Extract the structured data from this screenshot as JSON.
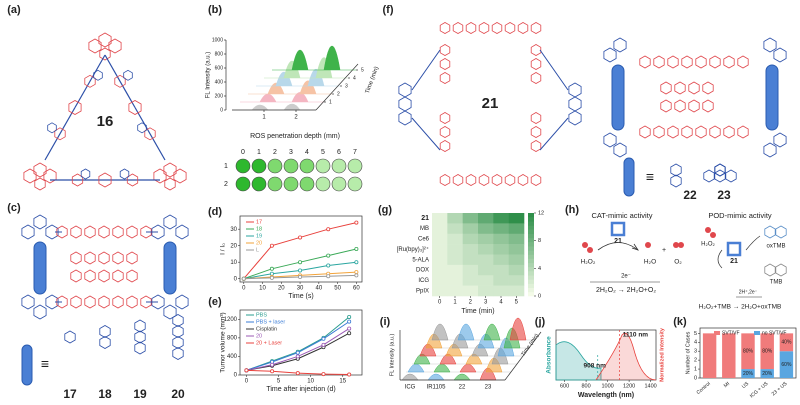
{
  "a": {
    "label": "(a)",
    "compound": "16"
  },
  "b": {
    "label": "(b)",
    "y_label": "FL Intensity (a.u.)",
    "yticks": [
      0,
      200,
      400,
      600,
      800,
      1000
    ],
    "xticks": [
      1,
      2
    ],
    "x_label": "ROS penetration depth (mm)",
    "z_label": "Time (min)",
    "zticks": [
      1,
      2,
      3,
      4,
      5
    ],
    "well_columns": [
      "0",
      "1",
      "2",
      "3",
      "4",
      "5",
      "6",
      "7"
    ],
    "well_rows": [
      "1",
      "2"
    ]
  },
  "c": {
    "label": "(c)",
    "equiv": "≡",
    "compounds": [
      "17",
      "18",
      "19",
      "20"
    ]
  },
  "d": {
    "label": "(d)",
    "y_label": "I / I₀",
    "x_label": "Time (s)",
    "xlim": [
      -2,
      63
    ],
    "ylim": [
      -2,
      38
    ],
    "xticks": [
      0,
      10,
      20,
      30,
      40,
      50,
      60
    ],
    "yticks": [
      0,
      10,
      20,
      30
    ],
    "x": [
      0,
      15,
      30,
      45,
      60
    ],
    "series": [
      {
        "name": "17",
        "color": "#e8413c",
        "values": [
          0,
          20,
          25,
          30,
          34
        ]
      },
      {
        "name": "18",
        "color": "#3aa957",
        "values": [
          0,
          6,
          10,
          14,
          18
        ]
      },
      {
        "name": "19",
        "color": "#2aa6a0",
        "values": [
          0,
          3,
          5,
          8,
          10
        ]
      },
      {
        "name": "20",
        "color": "#f2a33a",
        "values": [
          0,
          1,
          2,
          3,
          4
        ]
      },
      {
        "name": "L",
        "color": "#999999",
        "values": [
          0,
          0.5,
          1,
          1.5,
          2
        ]
      }
    ]
  },
  "e": {
    "label": "(e)",
    "y_label": "Tumor volume (mm³)",
    "x_label": "Time after injection (d)",
    "xlim": [
      -1,
      18
    ],
    "ylim": [
      0,
      1400
    ],
    "xticks": [
      0,
      5,
      10,
      15
    ],
    "yticks": [
      0,
      400,
      800,
      1200
    ],
    "x": [
      0,
      4,
      8,
      12,
      16
    ],
    "series": [
      {
        "name": "PBS",
        "color": "#2a9d8f",
        "values": [
          100,
          300,
          500,
          800,
          1250
        ]
      },
      {
        "name": "PBS + laser",
        "color": "#3a7bd5",
        "values": [
          100,
          280,
          480,
          780,
          1150
        ]
      },
      {
        "name": "Cisplatin",
        "color": "#333333",
        "values": [
          100,
          200,
          350,
          600,
          900
        ]
      },
      {
        "name": "20",
        "color": "#9b59b6",
        "values": [
          100,
          220,
          400,
          650,
          1000
        ]
      },
      {
        "name": "20 + Laser",
        "color": "#e8413c",
        "values": [
          100,
          80,
          40,
          20,
          10
        ]
      }
    ]
  },
  "f": {
    "label": "(f)",
    "compounds": [
      "21",
      "22",
      "23"
    ],
    "equiv": "≡"
  },
  "g": {
    "label": "(g)",
    "rows": [
      "21",
      "MB",
      "Ce6",
      "[Ru(bpy)₃]²⁺",
      "5-ALA",
      "DOX",
      "ICG",
      "PpIX"
    ],
    "xticks": [
      0,
      1,
      2,
      3,
      4,
      5
    ],
    "x_label": "Time (min)",
    "colorbar_ticks": [
      0,
      4,
      8,
      12
    ],
    "values": [
      [
        1,
        4,
        7,
        9,
        11,
        12
      ],
      [
        1,
        3,
        5,
        7,
        8,
        9
      ],
      [
        1,
        2,
        4,
        5,
        6,
        7
      ],
      [
        1,
        2,
        3,
        4,
        5,
        6
      ],
      [
        1,
        2,
        3,
        3,
        4,
        5
      ],
      [
        1,
        1,
        2,
        3,
        3,
        4
      ],
      [
        1,
        1,
        2,
        2,
        3,
        3
      ],
      [
        1,
        1,
        1,
        2,
        2,
        2
      ]
    ]
  },
  "h": {
    "label": "(h)",
    "cat_title": "CAT-mimic activity",
    "pod_title": "POD-mimic activity",
    "catalyst": "21",
    "h2o2": "H₂O₂",
    "h2o": "H₂O",
    "plus": "+",
    "o2": "O₂",
    "electrons": "2e⁻",
    "cat_equation": "2H₂O₂ → 2H₂O+O₂",
    "oxtmb": "oxTMB",
    "tmb": "TMB",
    "pod_equation": "H₂O₂+TMB → 2H₂O+oxTMB",
    "pod_electrons": "2H⁺,2e⁻"
  },
  "i": {
    "label": "(i)",
    "y_label": "FL Intensity (a.u.)",
    "z_label": "Time (min)",
    "categories": [
      "ICG",
      "IR1105",
      "22",
      "23"
    ]
  },
  "j": {
    "label": "(j)",
    "y_label": "Absorbance",
    "y2_label": "Normalized Intensity",
    "x_label": "Wavelength (nm)",
    "xlim": [
      520,
      1450
    ],
    "xticks": [
      600,
      800,
      1000,
      1200,
      1400
    ],
    "peak1": "908 nm",
    "peak2": "1110 nm"
  },
  "k": {
    "label": "(k)",
    "y_label": "Number of Cases",
    "categories": [
      "Control",
      "MI",
      "US",
      "ICG + US",
      "23 + US"
    ],
    "ylim": [
      0,
      5.6
    ],
    "yticks": [
      0,
      1,
      2,
      3,
      4,
      5
    ],
    "series": [
      {
        "name": "no SVT/VF",
        "color": "#5aa6e0",
        "values": [
          0,
          0,
          1,
          1,
          3
        ],
        "value_labels": [
          null,
          null,
          "20%",
          "20%",
          "60%"
        ]
      },
      {
        "name": "SVT/VF",
        "color": "#f07b7b",
        "values": [
          5,
          5,
          4,
          4,
          2
        ],
        "value_labels": [
          null,
          null,
          "80%",
          "80%",
          "40%"
        ]
      }
    ]
  }
}
